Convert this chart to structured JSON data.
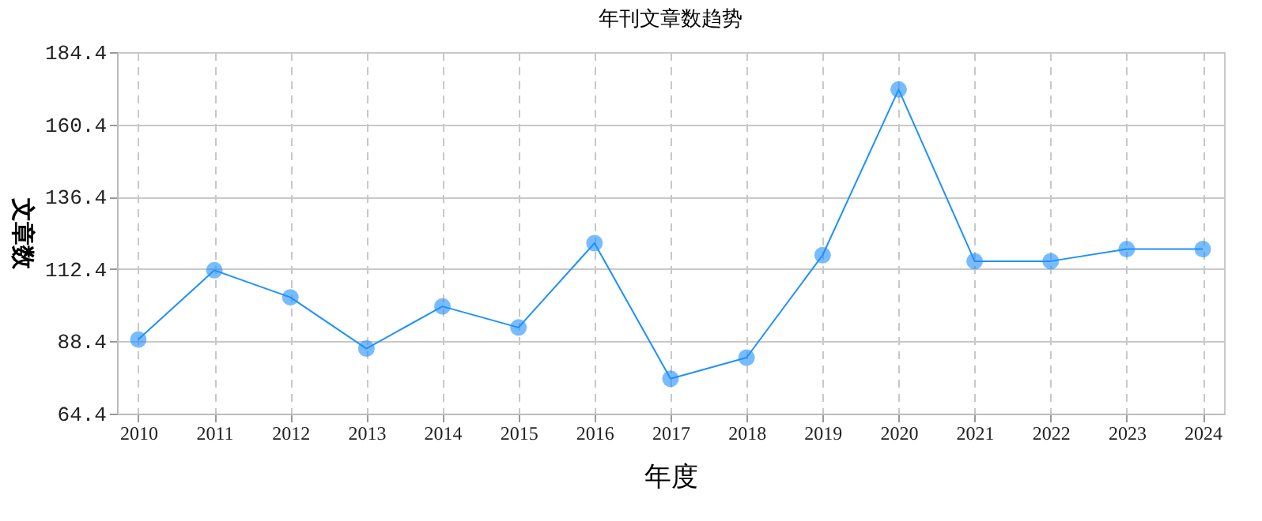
{
  "chart_data": {
    "type": "line",
    "title": "年刊文章数趋势",
    "xlabel": "年度",
    "ylabel": "文章数",
    "categories": [
      "2010",
      "2011",
      "2012",
      "2013",
      "2014",
      "2015",
      "2016",
      "2017",
      "2018",
      "2019",
      "2020",
      "2021",
      "2022",
      "2023",
      "2024"
    ],
    "series": [
      {
        "color": "#1e90ff",
        "values": [
          89,
          112,
          103,
          86,
          100,
          93,
          121,
          76,
          83,
          117,
          172,
          115,
          115,
          119,
          119
        ]
      }
    ],
    "ylim": [
      64.4,
      184.4
    ],
    "yticks": [
      64.4,
      88.4,
      112.4,
      136.4,
      160.4,
      184.4
    ],
    "grid": true,
    "marker": "circle",
    "line_style": "solid",
    "legend": false
  }
}
